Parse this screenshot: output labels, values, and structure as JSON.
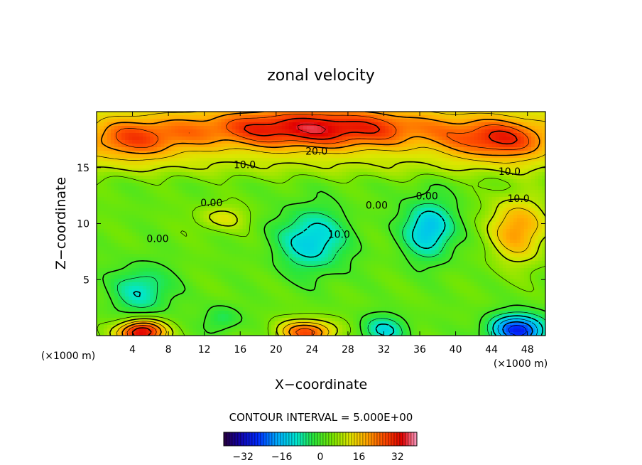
{
  "chart_data": {
    "type": "heatmap",
    "title": "zonal velocity",
    "xlabel": "X−coordinate",
    "ylabel": "Z−coordinate",
    "x_unit": "(×1000 m)",
    "y_unit": "(×1000 m)",
    "xlim": [
      0,
      50
    ],
    "ylim": [
      0,
      20
    ],
    "x_ticks": [
      4,
      8,
      12,
      16,
      20,
      24,
      28,
      32,
      36,
      40,
      44,
      48
    ],
    "y_ticks": [
      5,
      10,
      15
    ],
    "contour_interval_label": "CONTOUR INTERVAL = 5.000E+00",
    "contour_interval": 5,
    "contour_labels": [
      {
        "text": "20.0",
        "x": 24.5,
        "y": 16.4
      },
      {
        "text": "10.0",
        "x": 16.5,
        "y": 15.2
      },
      {
        "text": "10.0",
        "x": 46.0,
        "y": 14.6
      },
      {
        "text": "10.0",
        "x": 47.0,
        "y": 12.2
      },
      {
        "text": "0.00",
        "x": 12.8,
        "y": 11.8
      },
      {
        "text": "0.00",
        "x": 31.2,
        "y": 11.6
      },
      {
        "text": "0.00",
        "x": 36.8,
        "y": 12.4
      },
      {
        "text": "0.00",
        "x": 6.8,
        "y": 8.6
      },
      {
        "text": "10.0",
        "x": 27.0,
        "y": 9.0
      }
    ],
    "field_features": [
      {
        "x": 24,
        "y": 18.5,
        "value": 26,
        "sx": 14,
        "sz": 1.8
      },
      {
        "x": 45,
        "y": 17.5,
        "value": 20,
        "sx": 6,
        "sz": 1.8
      },
      {
        "x": 4,
        "y": 17.5,
        "value": 16,
        "sx": 6,
        "sz": 1.8
      },
      {
        "x": 24,
        "y": 8.5,
        "value": -17,
        "sx": 3.8,
        "sz": 2.8
      },
      {
        "x": 37,
        "y": 9.5,
        "value": -19,
        "sx": 2.8,
        "sz": 2.6
      },
      {
        "x": 5,
        "y": 4.0,
        "value": -13,
        "sx": 3.2,
        "sz": 2.2
      },
      {
        "x": 47,
        "y": 9.5,
        "value": 18,
        "sx": 3.2,
        "sz": 3.0
      },
      {
        "x": 14,
        "y": 10.5,
        "value": 9,
        "sx": 3.0,
        "sz": 1.2
      },
      {
        "x": 5,
        "y": 0.3,
        "value": 34,
        "sx": 2.6,
        "sz": 1.1
      },
      {
        "x": 23.5,
        "y": 0.3,
        "value": 24,
        "sx": 3.2,
        "sz": 1.1
      },
      {
        "x": 32,
        "y": 0.5,
        "value": -14,
        "sx": 2.6,
        "sz": 1.3
      },
      {
        "x": 47,
        "y": 0.5,
        "value": -30,
        "sx": 3.2,
        "sz": 1.4
      },
      {
        "x": 14,
        "y": 1.5,
        "value": -8,
        "sx": 2.0,
        "sz": 1.2
      }
    ],
    "colorbar": {
      "min": -40,
      "max": 40,
      "ticks": [
        -32,
        -16,
        0,
        16,
        32
      ],
      "tick_labels": [
        "−32",
        "−16",
        "0",
        "16",
        "32"
      ]
    }
  }
}
